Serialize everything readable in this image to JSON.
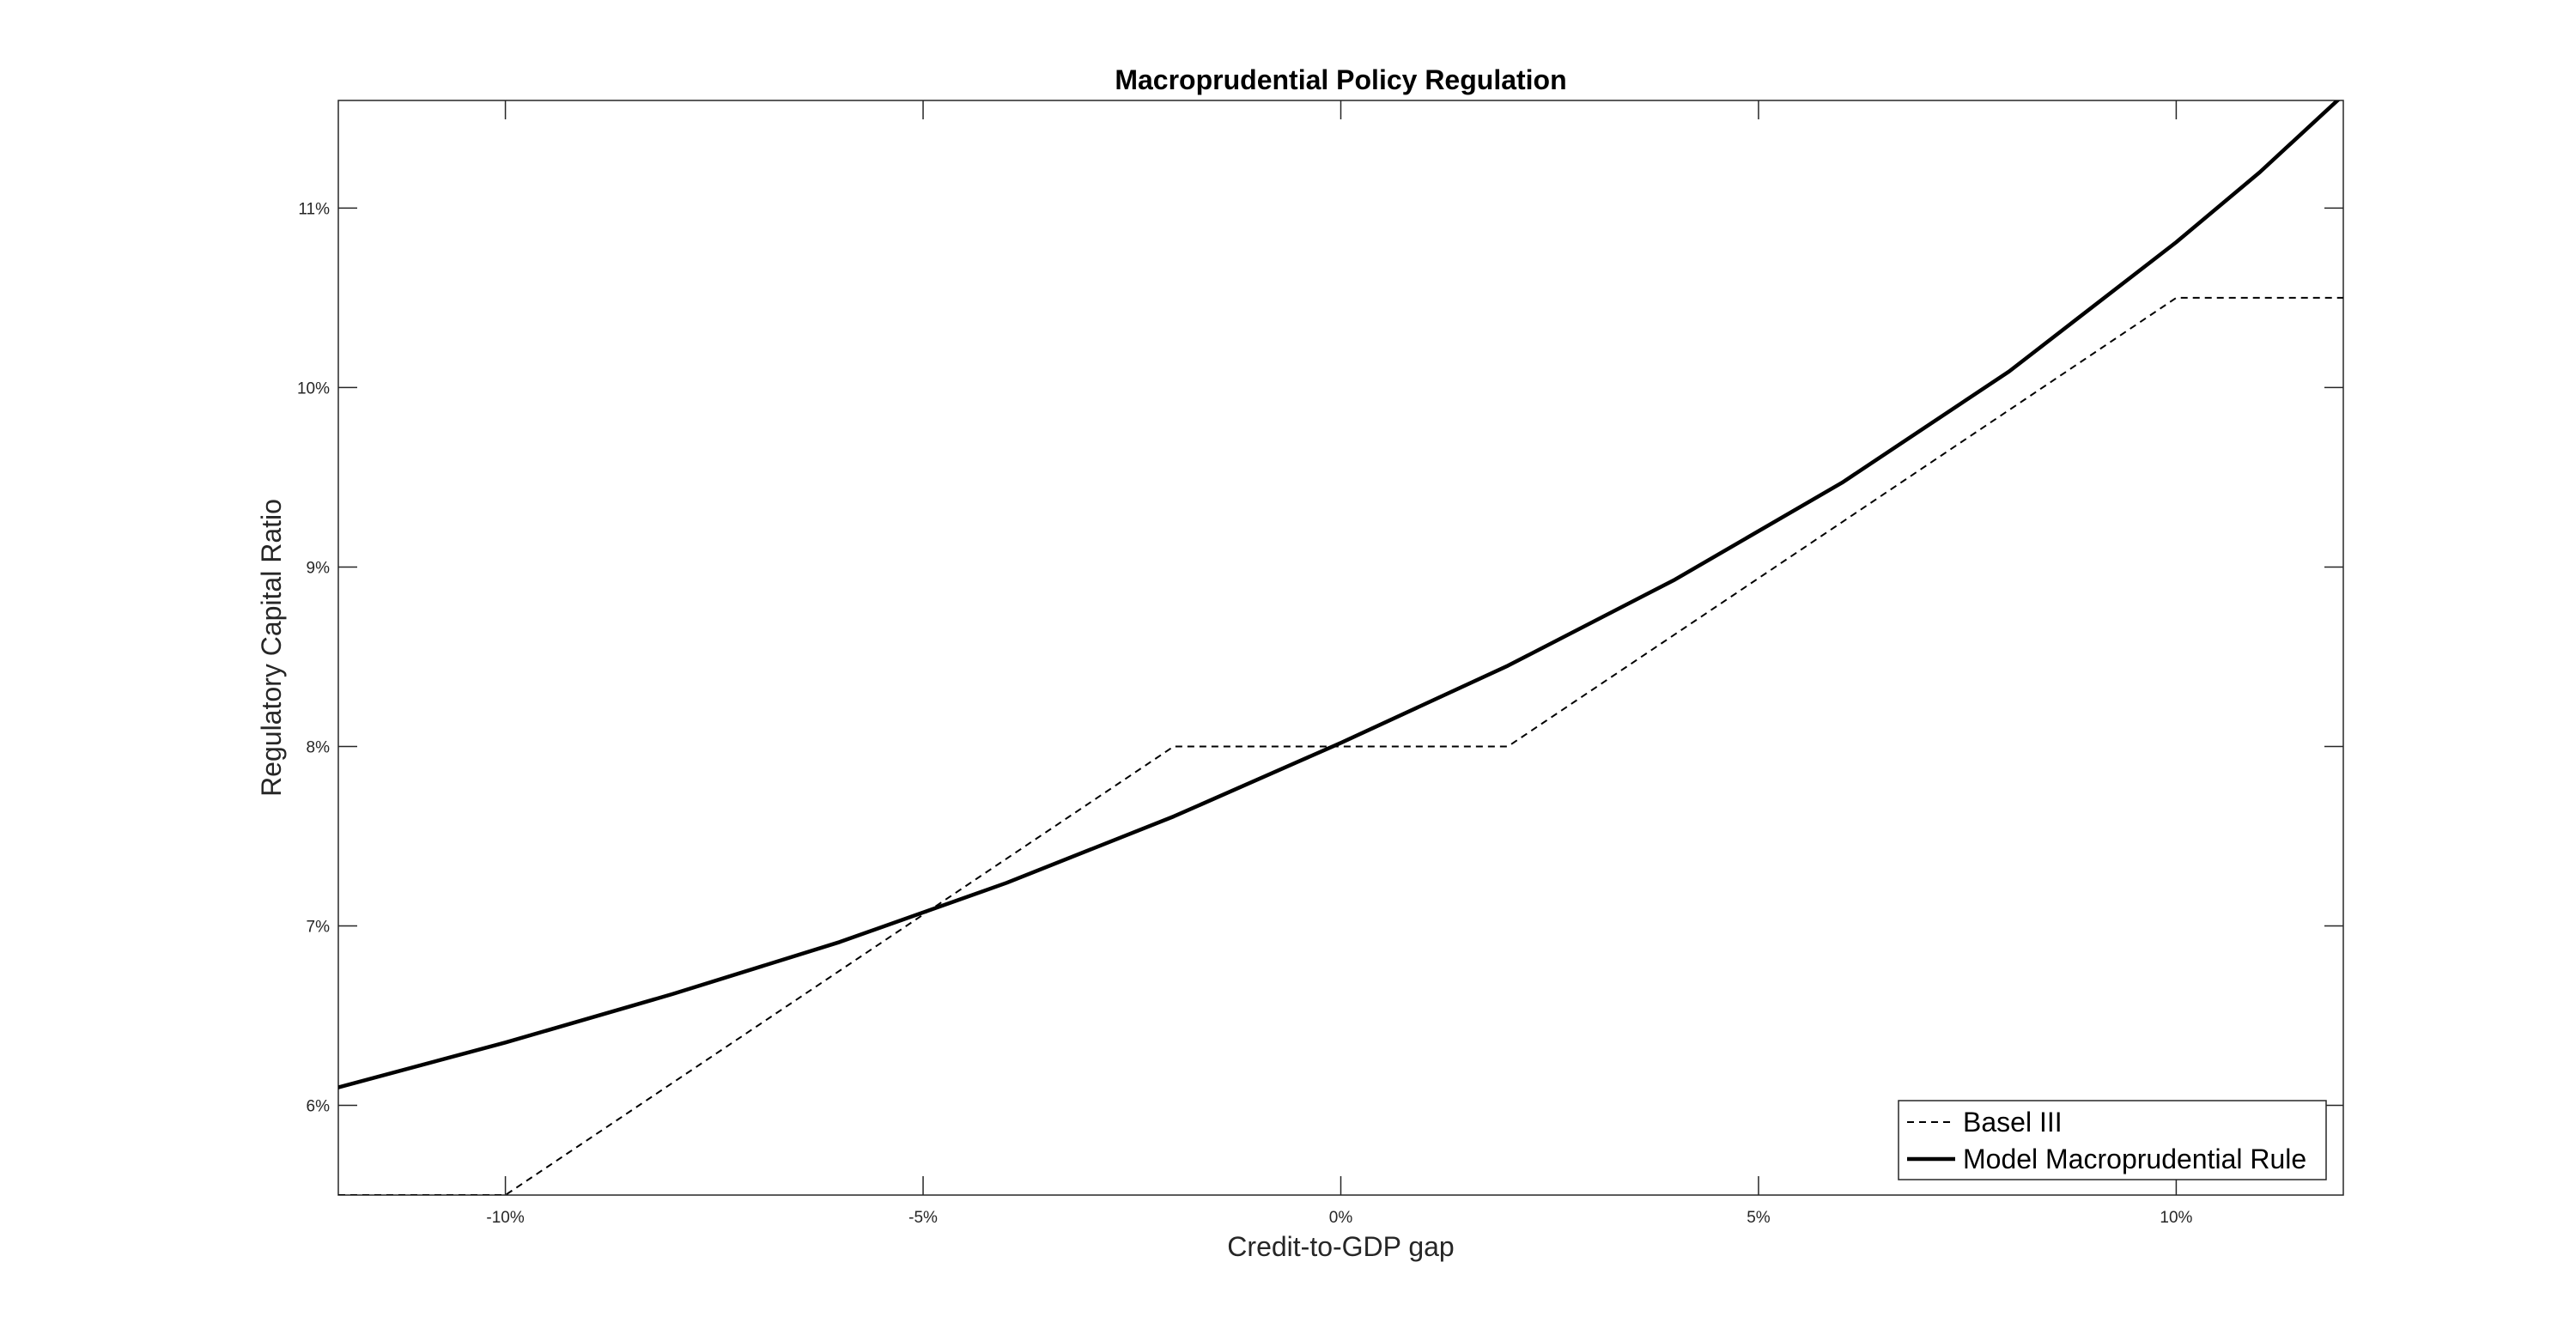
{
  "chart_data": {
    "type": "line",
    "title": "Macroprudential Policy Regulation",
    "xlabel": "Credit-to-GDP gap",
    "ylabel": "Regulatory Capital Ratio",
    "xlim": [
      -0.12,
      0.12
    ],
    "ylim": [
      0.055,
      0.116
    ],
    "x_ticks": [
      -0.1,
      -0.05,
      0.0,
      0.05,
      0.1
    ],
    "x_tick_labels": [
      "-10%",
      "-5%",
      "0%",
      "5%",
      "10%"
    ],
    "y_ticks": [
      0.06,
      0.07,
      0.08,
      0.09,
      0.1,
      0.11
    ],
    "y_tick_labels": [
      "6%",
      "7%",
      "8%",
      "9%",
      "10%",
      "11%"
    ],
    "grid": false,
    "legend_position": "bottom-right",
    "series": [
      {
        "name": "Basel III",
        "style": "dashed",
        "color": "#000000",
        "x": [
          -0.12,
          -0.1,
          -0.02,
          0.02,
          0.1,
          0.12
        ],
        "y": [
          0.055,
          0.055,
          0.08,
          0.08,
          0.105,
          0.105
        ]
      },
      {
        "name": "Model Macroprudential Rule",
        "style": "solid",
        "color": "#000000",
        "x": [
          -0.12,
          -0.1,
          -0.08,
          -0.06,
          -0.04,
          -0.02,
          0.0,
          0.02,
          0.04,
          0.06,
          0.08,
          0.1,
          0.11,
          0.12
        ],
        "y": [
          0.061,
          0.0635,
          0.0662,
          0.0691,
          0.0724,
          0.0761,
          0.0802,
          0.0845,
          0.0893,
          0.0947,
          0.1009,
          0.1081,
          0.112,
          0.1163
        ]
      }
    ]
  }
}
